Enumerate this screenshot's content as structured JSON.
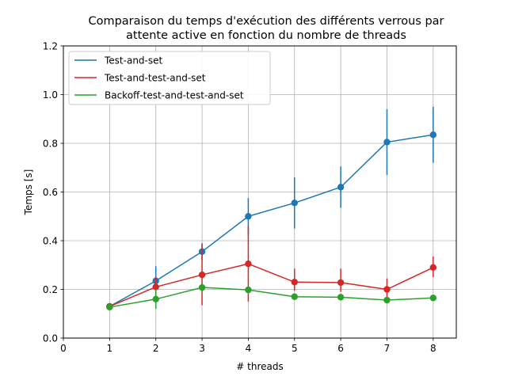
{
  "chart_data": {
    "type": "line",
    "title": "Comparaison du temps d'exécution des différents verrous par\nattente active en fonction du nombre de threads",
    "xlabel": "# threads",
    "ylabel": "Temps [s]",
    "xlim": [
      0,
      8.5
    ],
    "ylim": [
      0,
      1.2
    ],
    "x_ticks": [
      0,
      1,
      2,
      3,
      4,
      5,
      6,
      7,
      8
    ],
    "y_ticks": [
      0.0,
      0.2,
      0.4,
      0.6,
      0.8,
      1.0,
      1.2
    ],
    "y_tick_labels": [
      "0.0",
      "0.2",
      "0.4",
      "0.6",
      "0.8",
      "1.0",
      "1.2"
    ],
    "grid": true,
    "legend_position": "top-left",
    "x": [
      1,
      2,
      3,
      4,
      5,
      6,
      7,
      8
    ],
    "series": [
      {
        "name": "Test-and-set",
        "color": "#1f77b4",
        "values": [
          0.13,
          0.235,
          0.355,
          0.5,
          0.555,
          0.62,
          0.805,
          0.835
        ],
        "err_low": [
          0.125,
          0.185,
          0.32,
          0.425,
          0.45,
          0.535,
          0.67,
          0.72
        ],
        "err_high": [
          0.135,
          0.295,
          0.39,
          0.575,
          0.66,
          0.705,
          0.94,
          0.95
        ]
      },
      {
        "name": "Test-and-test-and-set",
        "color": "#d62728",
        "values": [
          0.13,
          0.21,
          0.26,
          0.305,
          0.23,
          0.228,
          0.2,
          0.29
        ],
        "err_low": [
          0.125,
          0.17,
          0.135,
          0.15,
          0.195,
          0.19,
          0.16,
          0.25
        ],
        "err_high": [
          0.135,
          0.25,
          0.385,
          0.46,
          0.285,
          0.285,
          0.245,
          0.335
        ]
      },
      {
        "name": "Backoff-test-and-test-and-set",
        "color": "#2ca02c",
        "values": [
          0.127,
          0.16,
          0.208,
          0.198,
          0.17,
          0.168,
          0.156,
          0.165
        ],
        "err_low": [
          0.122,
          0.12,
          0.19,
          0.185,
          0.165,
          0.162,
          0.15,
          0.16
        ],
        "err_high": [
          0.132,
          0.2,
          0.225,
          0.21,
          0.175,
          0.174,
          0.162,
          0.17
        ]
      }
    ]
  }
}
